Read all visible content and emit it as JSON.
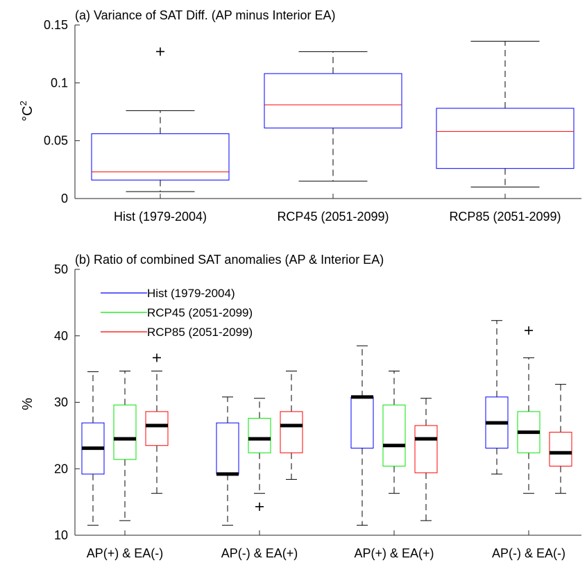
{
  "chart_data": [
    {
      "type": "box",
      "title": "(a) Variance of SAT Diff. (AP minus Interior EA)",
      "ylabel_main": "°C",
      "ylabel_sup": "2",
      "ylim": [
        0,
        0.15
      ],
      "yticks": [
        0,
        0.05,
        0.1,
        0.15
      ],
      "ytick_labels": [
        "0",
        "0.05",
        "0.1",
        "0.15"
      ],
      "categories": [
        "Hist (1979-2004)",
        "RCP45 (2051-2099)",
        "RCP85 (2051-2099)"
      ],
      "box_color": "#0000ff",
      "median_color": "#ff0000",
      "boxes": [
        {
          "whisker_low": 0.006,
          "q1": 0.016,
          "median": 0.023,
          "q3": 0.056,
          "whisker_high": 0.076,
          "outliers": [
            0.127
          ]
        },
        {
          "whisker_low": 0.015,
          "q1": 0.061,
          "median": 0.081,
          "q3": 0.108,
          "whisker_high": 0.127,
          "outliers": []
        },
        {
          "whisker_low": 0.01,
          "q1": 0.026,
          "median": 0.058,
          "q3": 0.078,
          "whisker_high": 0.136,
          "outliers": []
        }
      ]
    },
    {
      "type": "box",
      "title": "(b) Ratio of combined SAT anomalies (AP & Interior EA)",
      "ylabel_main": "%",
      "ylim": [
        10,
        50
      ],
      "yticks": [
        10,
        20,
        30,
        40,
        50
      ],
      "ytick_labels": [
        "10",
        "20",
        "30",
        "40",
        "50"
      ],
      "categories": [
        "AP(+) & EA(-)",
        "AP(-) & EA(+)",
        "AP(+) & EA(+)",
        "AP(-) & EA(-)"
      ],
      "median_color": "#000000",
      "legend_position": "top-left",
      "series": [
        {
          "name": "Hist (1979-2004)",
          "color": "#0000ff",
          "boxes": [
            {
              "whisker_low": 11.5,
              "q1": 19.2,
              "median": 23.1,
              "q3": 26.9,
              "whisker_high": 34.6,
              "outliers": []
            },
            {
              "whisker_low": 11.5,
              "q1": 19.2,
              "median": 19.2,
              "q3": 26.9,
              "whisker_high": 30.8,
              "outliers": []
            },
            {
              "whisker_low": 11.5,
              "q1": 23.1,
              "median": 30.8,
              "q3": 30.8,
              "whisker_high": 38.5,
              "outliers": []
            },
            {
              "whisker_low": 19.2,
              "q1": 23.1,
              "median": 26.9,
              "q3": 30.8,
              "whisker_high": 42.3,
              "outliers": []
            }
          ]
        },
        {
          "name": "RCP45 (2051-2099)",
          "color": "#00e600",
          "boxes": [
            {
              "whisker_low": 12.2,
              "q1": 21.4,
              "median": 24.5,
              "q3": 29.6,
              "whisker_high": 34.7,
              "outliers": []
            },
            {
              "whisker_low": 16.3,
              "q1": 22.4,
              "median": 24.5,
              "q3": 27.6,
              "whisker_high": 30.6,
              "outliers": [
                14.3
              ]
            },
            {
              "whisker_low": 16.3,
              "q1": 20.4,
              "median": 23.5,
              "q3": 29.6,
              "whisker_high": 34.7,
              "outliers": []
            },
            {
              "whisker_low": 16.3,
              "q1": 22.4,
              "median": 25.5,
              "q3": 28.6,
              "whisker_high": 36.7,
              "outliers": [
                40.8
              ]
            }
          ]
        },
        {
          "name": "RCP85 (2051-2099)",
          "color": "#ff0000",
          "boxes": [
            {
              "whisker_low": 16.3,
              "q1": 23.5,
              "median": 26.5,
              "q3": 28.6,
              "whisker_high": 34.7,
              "outliers": [
                36.7
              ]
            },
            {
              "whisker_low": 18.4,
              "q1": 22.4,
              "median": 26.5,
              "q3": 28.6,
              "whisker_high": 34.7,
              "outliers": []
            },
            {
              "whisker_low": 12.2,
              "q1": 19.4,
              "median": 24.5,
              "q3": 26.5,
              "whisker_high": 30.6,
              "outliers": []
            },
            {
              "whisker_low": 16.3,
              "q1": 20.4,
              "median": 22.4,
              "q3": 25.5,
              "whisker_high": 32.7,
              "outliers": []
            }
          ]
        }
      ]
    }
  ]
}
